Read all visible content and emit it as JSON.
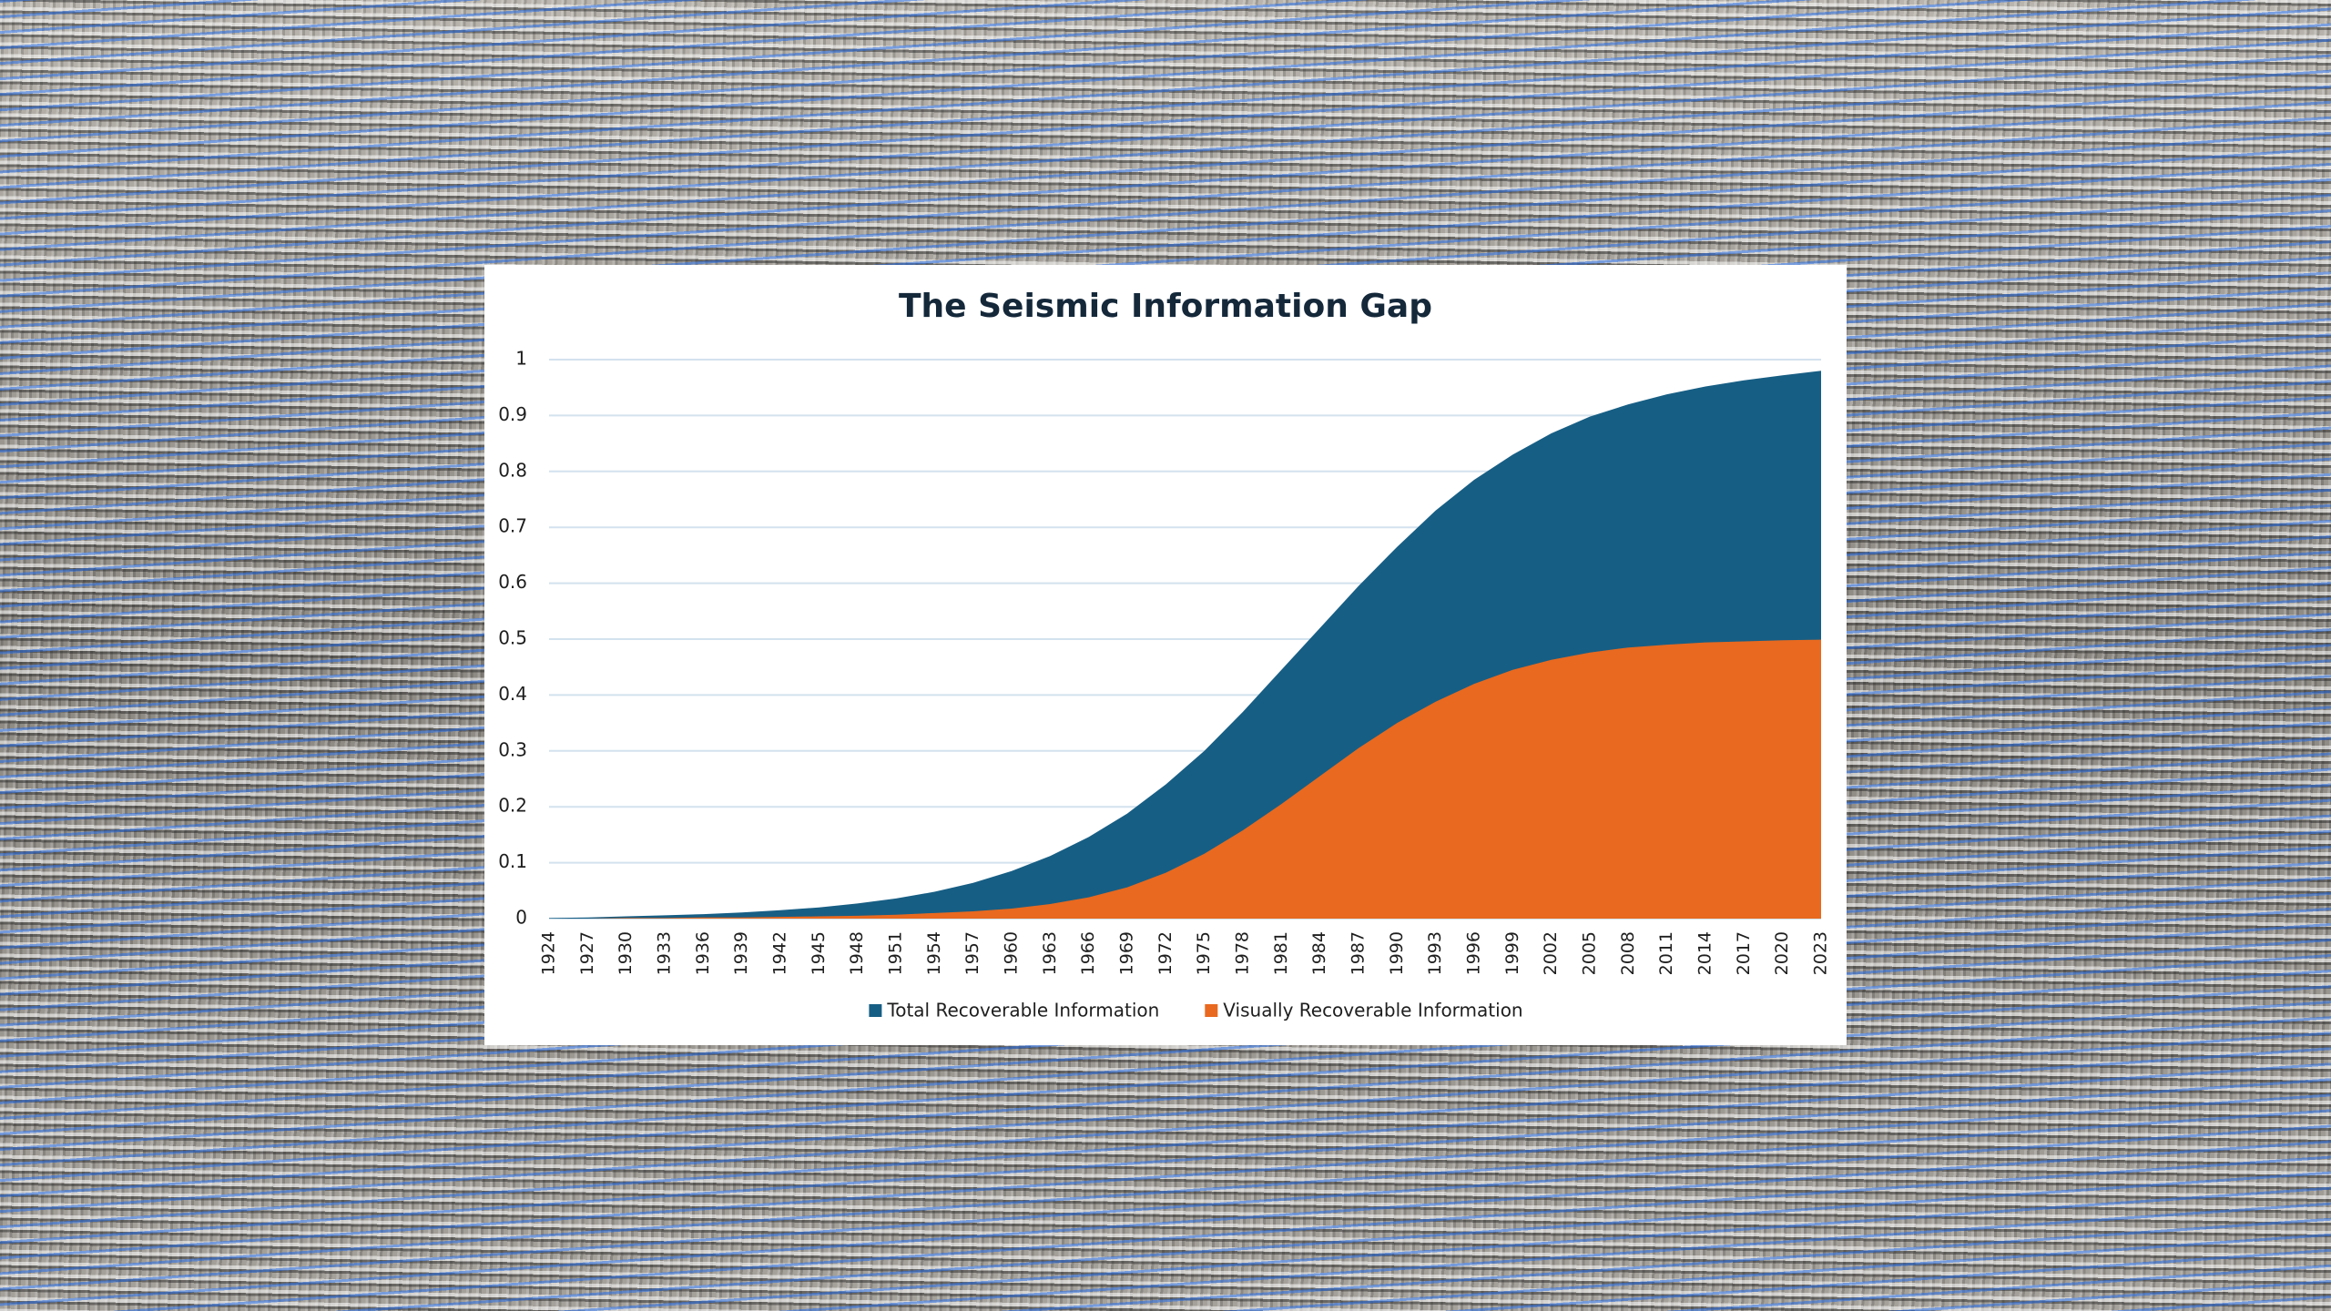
{
  "chart_data": {
    "type": "area",
    "title": "The Seismic Information Gap",
    "categories": [
      "1924",
      "1927",
      "1930",
      "1933",
      "1936",
      "1939",
      "1942",
      "1945",
      "1948",
      "1951",
      "1954",
      "1957",
      "1960",
      "1963",
      "1966",
      "1969",
      "1972",
      "1975",
      "1978",
      "1981",
      "1984",
      "1987",
      "1990",
      "1993",
      "1996",
      "1999",
      "2002",
      "2005",
      "2008",
      "2011",
      "2014",
      "2017",
      "2020",
      "2023"
    ],
    "series": [
      {
        "name": "Total Recoverable Information",
        "color": "#175e84",
        "values": [
          0.001,
          0.002,
          0.004,
          0.006,
          0.008,
          0.011,
          0.015,
          0.02,
          0.027,
          0.036,
          0.048,
          0.064,
          0.085,
          0.112,
          0.146,
          0.188,
          0.24,
          0.3,
          0.37,
          0.445,
          0.52,
          0.595,
          0.665,
          0.73,
          0.785,
          0.83,
          0.868,
          0.898,
          0.92,
          0.938,
          0.952,
          0.963,
          0.972,
          0.98
        ]
      },
      {
        "name": "Visually Recoverable Information",
        "color": "#e8691f",
        "values": [
          0,
          0,
          0.001,
          0.001,
          0.002,
          0.002,
          0.003,
          0.004,
          0.005,
          0.007,
          0.01,
          0.013,
          0.018,
          0.026,
          0.038,
          0.056,
          0.082,
          0.116,
          0.158,
          0.205,
          0.255,
          0.305,
          0.35,
          0.388,
          0.42,
          0.445,
          0.463,
          0.476,
          0.485,
          0.49,
          0.494,
          0.496,
          0.498,
          0.499
        ]
      }
    ],
    "ylim": [
      0,
      1
    ],
    "yticks": [
      0,
      0.1,
      0.2,
      0.3,
      0.4,
      0.5,
      0.6,
      0.7,
      0.8,
      0.9,
      1
    ],
    "grid": true,
    "legend": "bottom"
  }
}
